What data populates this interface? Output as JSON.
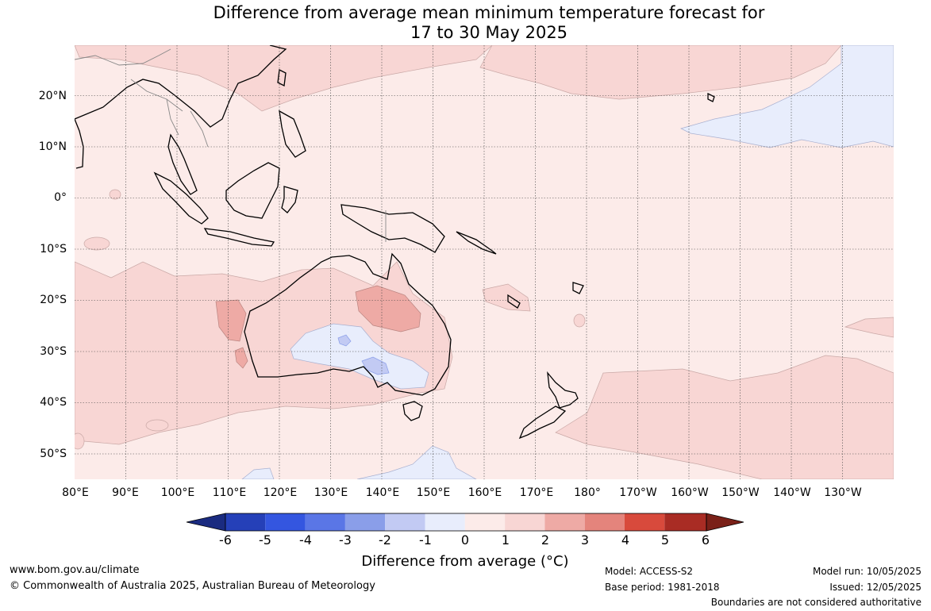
{
  "title": {
    "line1": "Difference from average mean minimum temperature forecast for",
    "line2": "17 to 30 May 2025"
  },
  "axes": {
    "lon_labels": [
      "80°E",
      "90°E",
      "100°E",
      "110°E",
      "120°E",
      "130°E",
      "140°E",
      "150°E",
      "160°E",
      "170°E",
      "180°",
      "170°W",
      "160°W",
      "150°W",
      "140°W",
      "130°W"
    ],
    "lat_labels": [
      "20°N",
      "10°N",
      "0°",
      "10°S",
      "20°S",
      "30°S",
      "40°S",
      "50°S"
    ]
  },
  "colorbar": {
    "ticks": [
      "-6",
      "-5",
      "-4",
      "-3",
      "-2",
      "-1",
      "0",
      "1",
      "2",
      "3",
      "4",
      "5",
      "6"
    ],
    "colors": [
      "#1a2b80",
      "#2540b8",
      "#3456e0",
      "#5a76e6",
      "#8a9ee9",
      "#c2caf3",
      "#e8edfc",
      "#fcebe9",
      "#f8d6d4",
      "#eeaaa5",
      "#e4847c",
      "#d84a3c",
      "#a92c24",
      "#7a2018"
    ],
    "label": "Difference from average (",
    "label_unit": "°C",
    "label_end": ")"
  },
  "footer": {
    "website": "www.bom.gov.au/climate",
    "copyright": "© Commonwealth of Australia 2025, Australian Bureau of Meteorology",
    "model": "Model: ACCESS-S2",
    "base_period": "Base period: 1981-2018",
    "model_run": "Model run: 10/05/2025",
    "issued": "Issued: 12/05/2025",
    "disclaimer": "Boundaries are not considered authoritative"
  }
}
